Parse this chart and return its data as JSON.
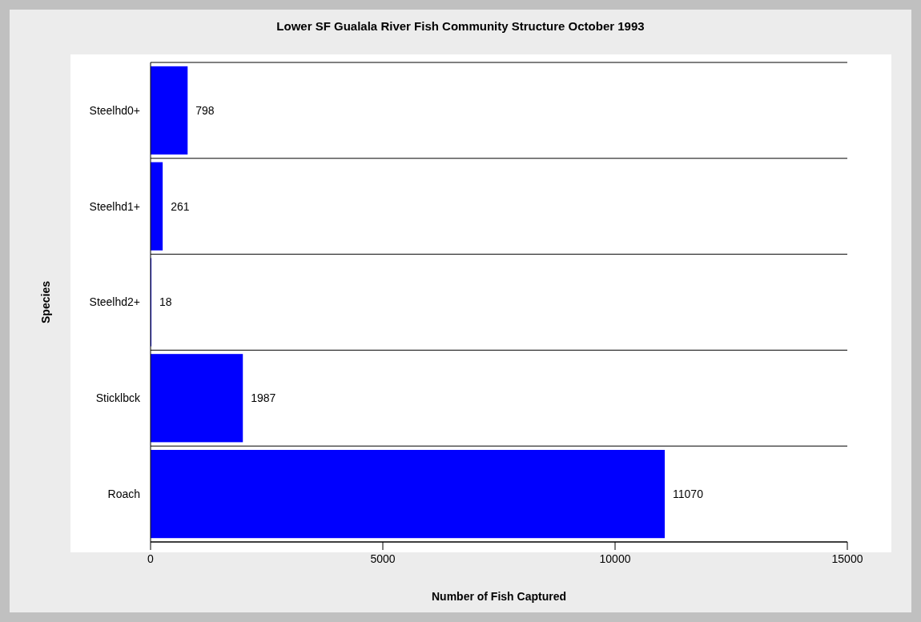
{
  "chart_data": {
    "type": "bar",
    "orientation": "horizontal",
    "title": "Lower SF Gualala River Fish Community Structure October 1993",
    "xlabel": "Number of Fish Captured",
    "ylabel": "Species",
    "categories": [
      "Steelhd0+",
      "Steelhd1+",
      "Steelhd2+",
      "Sticklbck",
      "Roach"
    ],
    "values": [
      798,
      261,
      18,
      1987,
      11070
    ],
    "color": "#0000ff",
    "xlim": [
      0,
      15000
    ],
    "xticks": [
      0,
      5000,
      10000,
      15000
    ],
    "grid": "y",
    "data_labels": true
  }
}
